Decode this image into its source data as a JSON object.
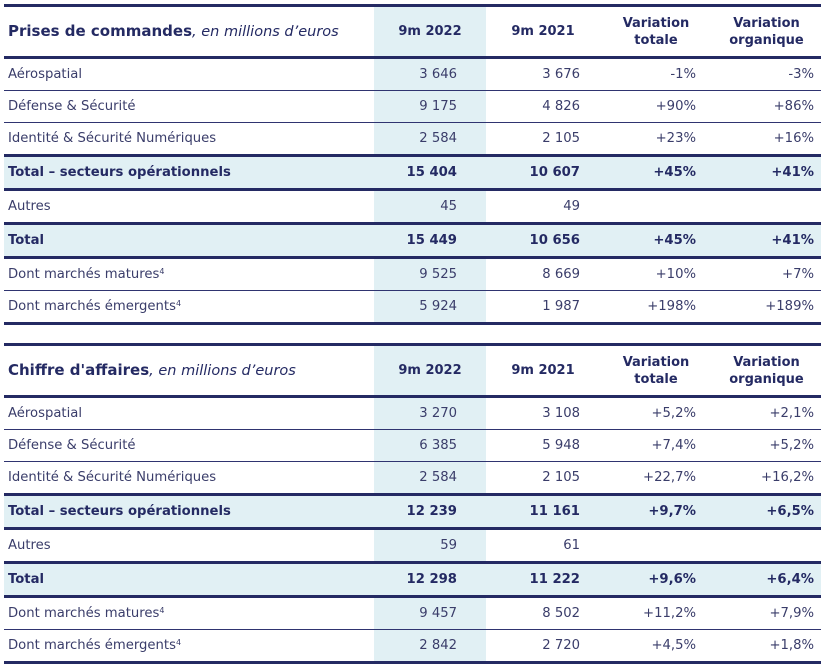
{
  "tables": [
    {
      "title_bold": "Prises de commandes",
      "title_italic": ", en millions d’euros",
      "headers": {
        "col_2022": "9m 2022",
        "col_2021": "9m 2021",
        "var_totale_1": "Variation",
        "var_totale_2": "totale",
        "var_org_1": "Variation",
        "var_org_2": "organique"
      },
      "rows": [
        {
          "label": "Aérospatial",
          "sup": "",
          "v2022": "3 646",
          "v2021": "3 676",
          "var_totale": "-1%",
          "var_org": "-3%"
        },
        {
          "label": "Défense & Sécurité",
          "sup": "",
          "v2022": "9 175",
          "v2021": "4 826",
          "var_totale": "+90%",
          "var_org": "+86%"
        },
        {
          "label": "Identité & Sécurité Numériques",
          "sup": "",
          "v2022": "2 584",
          "v2021": "2 105",
          "var_totale": "+23%",
          "var_org": "+16%"
        },
        {
          "label": "Total – secteurs opérationnels",
          "sup": "",
          "v2022": "15 404",
          "v2021": "10 607",
          "var_totale": "+45%",
          "var_org": "+41%"
        },
        {
          "label": "Autres",
          "sup": "",
          "v2022": "45",
          "v2021": "49",
          "var_totale": "",
          "var_org": ""
        },
        {
          "label": "Total",
          "sup": "",
          "v2022": "15 449",
          "v2021": "10 656",
          "var_totale": "+45%",
          "var_org": "+41%"
        },
        {
          "label": "Dont marchés matures",
          "sup": "4",
          "v2022": "9 525",
          "v2021": "8 669",
          "var_totale": "+10%",
          "var_org": "+7%"
        },
        {
          "label": "Dont marchés émergents",
          "sup": "4",
          "v2022": "5 924",
          "v2021": "1 987",
          "var_totale": "+198%",
          "var_org": "+189%"
        }
      ]
    },
    {
      "title_bold": "Chiffre d'affaires",
      "title_italic": ", en millions d’euros",
      "headers": {
        "col_2022": "9m 2022",
        "col_2021": "9m 2021",
        "var_totale_1": "Variation",
        "var_totale_2": "totale",
        "var_org_1": "Variation",
        "var_org_2": "organique"
      },
      "rows": [
        {
          "label": "Aérospatial",
          "sup": "",
          "v2022": "3 270",
          "v2021": "3 108",
          "var_totale": "+5,2%",
          "var_org": "+2,1%"
        },
        {
          "label": "Défense & Sécurité",
          "sup": "",
          "v2022": "6 385",
          "v2021": "5 948",
          "var_totale": "+7,4%",
          "var_org": "+5,2%"
        },
        {
          "label": "Identité & Sécurité Numériques",
          "sup": "",
          "v2022": "2 584",
          "v2021": "2 105",
          "var_totale": "+22,7%",
          "var_org": "+16,2%"
        },
        {
          "label": "Total – secteurs opérationnels",
          "sup": "",
          "v2022": "12 239",
          "v2021": "11 161",
          "var_totale": "+9,7%",
          "var_org": "+6,5%"
        },
        {
          "label": "Autres",
          "sup": "",
          "v2022": "59",
          "v2021": "61",
          "var_totale": "",
          "var_org": ""
        },
        {
          "label": "Total",
          "sup": "",
          "v2022": "12 298",
          "v2021": "11 222",
          "var_totale": "+9,6%",
          "var_org": "+6,4%"
        },
        {
          "label": "Dont marchés matures",
          "sup": "4",
          "v2022": "9 457",
          "v2021": "8 502",
          "var_totale": "+11,2%",
          "var_org": "+7,9%"
        },
        {
          "label": "Dont marchés émergents",
          "sup": "4",
          "v2022": "2 842",
          "v2021": "2 720",
          "var_totale": "+4,5%",
          "var_org": "+1,8%"
        }
      ]
    }
  ],
  "colors": {
    "text_dark": "#242a63",
    "text_body": "#3a3d6a",
    "highlight_bg": "#e1f0f4",
    "rule": "#242a63"
  }
}
